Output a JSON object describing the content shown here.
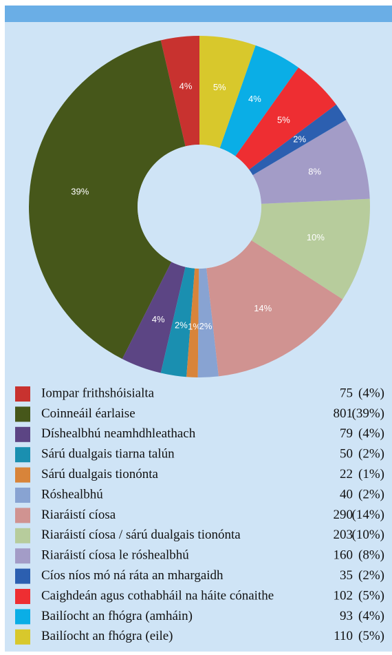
{
  "chart_data": {
    "type": "donut",
    "categories": [
      "Iompar frithshóisialta",
      "Coinneáil éarlaise",
      "Díshealbhú neamhdhleathach",
      "Sárú dualgais tiarna talún",
      "Sárú dualgais tionónta",
      "Róshealbhú",
      "Riaráistí cíosa",
      "Riaráistí cíosa / sárú dualgais tionónta",
      "Riaráistí cíosa le róshealbhú",
      "Cíos níos mó ná ráta an mhargaidh",
      "Caighdeán agus cothabháil na háite cónaithe",
      "Bailíocht an fhógra (amháin)",
      "Bailíocht an fhógra (eile)"
    ],
    "values": [
      75,
      801,
      79,
      50,
      22,
      40,
      290,
      203,
      160,
      35,
      102,
      93,
      110
    ],
    "percentages": [
      4,
      39,
      4,
      2,
      1,
      2,
      14,
      10,
      8,
      2,
      5,
      4,
      5
    ],
    "slice_labels": [
      "4%",
      "39%",
      "4%",
      "2%",
      "1%",
      "2%",
      "14%",
      "10%",
      "8%",
      "2%",
      "5%",
      "4%",
      "5%"
    ],
    "legend_percent_labels": [
      "(4%)",
      "(39%)",
      "(4%)",
      "(2%)",
      "(1%)",
      "(2%)",
      "(14%)",
      "(10%)",
      "(8%)",
      "(2%)",
      "(5%)",
      "(4%)",
      "(5%)"
    ],
    "colors": [
      "#c8322f",
      "#46571a",
      "#5c4584",
      "#1a8fb0",
      "#d8843a",
      "#88a3d2",
      "#d09391",
      "#b7cc9c",
      "#a39cc7",
      "#2c5fb0",
      "#ee2e32",
      "#0aaee6",
      "#d8c82c"
    ]
  }
}
